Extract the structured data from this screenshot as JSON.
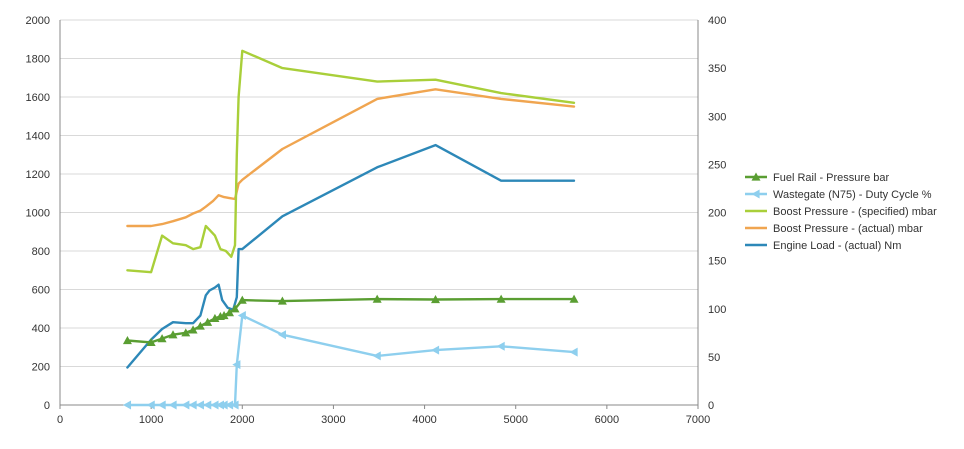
{
  "chart_data": {
    "type": "line",
    "title": "",
    "xlabel": "",
    "ylabel": "",
    "y2label": "",
    "xlim": [
      0,
      7000
    ],
    "ylim": [
      0,
      2000
    ],
    "y2lim": [
      0,
      400
    ],
    "x_ticks": [
      "0",
      "1000",
      "2000",
      "3000",
      "4000",
      "5000",
      "6000",
      "7000"
    ],
    "y_ticks": [
      "0",
      "200",
      "400",
      "600",
      "800",
      "1000",
      "1200",
      "1400",
      "1600",
      "1800",
      "2000"
    ],
    "y2_ticks": [
      "0",
      "50",
      "100",
      "150",
      "200",
      "250",
      "300",
      "350",
      "400"
    ],
    "grid": true,
    "legend_position": "right",
    "series": [
      {
        "name": "Fuel Rail - Pressure  bar",
        "axis": "left",
        "color": "#5a9e32",
        "marker": "triangle-up",
        "x": [
          740,
          1000,
          1120,
          1240,
          1380,
          1460,
          1540,
          1620,
          1700,
          1760,
          1800,
          1860,
          1920,
          2000,
          2440,
          3480,
          4120,
          4840,
          5640
        ],
        "y": [
          335,
          325,
          345,
          365,
          375,
          390,
          410,
          430,
          450,
          460,
          465,
          480,
          500,
          545,
          540,
          550,
          548,
          550,
          550
        ]
      },
      {
        "name": "Wastegate (N75) - Duty Cycle  %",
        "axis": "right",
        "color": "#8ecfee",
        "marker": "triangle-left",
        "x": [
          740,
          1000,
          1120,
          1240,
          1380,
          1460,
          1540,
          1620,
          1700,
          1760,
          1800,
          1860,
          1920,
          1940,
          2000,
          2440,
          3480,
          4120,
          4840,
          5640
        ],
        "y": [
          0,
          0,
          0,
          0,
          0,
          0,
          0,
          0,
          0,
          0,
          0,
          0,
          0,
          42,
          93,
          73,
          51,
          57,
          61,
          55
        ]
      },
      {
        "name": "Boost Pressure - (specified)  mbar",
        "axis": "left",
        "color": "#a9cf3a",
        "marker": "none",
        "x": [
          740,
          1000,
          1120,
          1240,
          1380,
          1460,
          1540,
          1600,
          1640,
          1700,
          1760,
          1820,
          1880,
          1920,
          1940,
          1960,
          2000,
          2440,
          3480,
          4120,
          4840,
          5640
        ],
        "y": [
          700,
          690,
          880,
          840,
          830,
          810,
          820,
          930,
          910,
          880,
          810,
          800,
          770,
          830,
          1300,
          1600,
          1840,
          1750,
          1680,
          1690,
          1620,
          1570
        ]
      },
      {
        "name": "Boost Pressure - (actual)  mbar",
        "axis": "left",
        "color": "#f0a550",
        "marker": "none",
        "x": [
          740,
          1000,
          1120,
          1240,
          1380,
          1460,
          1540,
          1600,
          1680,
          1740,
          1800,
          1860,
          1920,
          1960,
          2000,
          2440,
          3480,
          4120,
          4840,
          5640
        ],
        "y": [
          930,
          930,
          940,
          955,
          975,
          995,
          1010,
          1030,
          1060,
          1090,
          1080,
          1075,
          1070,
          1150,
          1170,
          1330,
          1590,
          1640,
          1590,
          1550
        ]
      },
      {
        "name": "Engine Load - (actual)  Nm",
        "axis": "right",
        "color": "#2d88b8",
        "marker": "none",
        "x": [
          740,
          1000,
          1120,
          1240,
          1380,
          1460,
          1540,
          1600,
          1640,
          1700,
          1740,
          1780,
          1840,
          1900,
          1940,
          1960,
          2000,
          2440,
          3480,
          4120,
          4840,
          5640
        ],
        "y": [
          39,
          68,
          79,
          86,
          85,
          85,
          93,
          114,
          119,
          122,
          125,
          109,
          101,
          99,
          112,
          162,
          162,
          196,
          247,
          270,
          233,
          233
        ]
      }
    ]
  }
}
